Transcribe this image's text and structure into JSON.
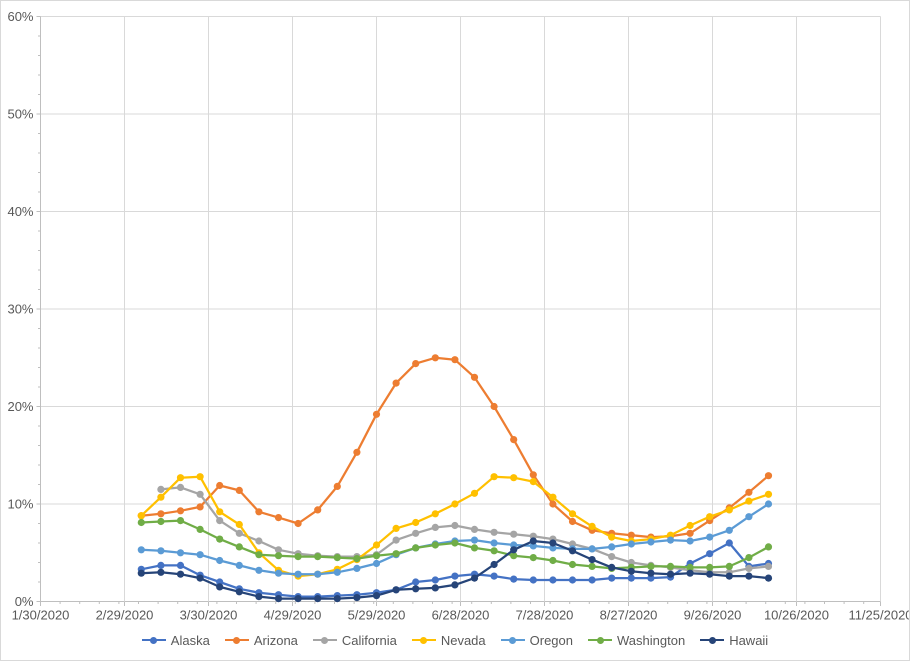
{
  "window": {
    "background": "#ffffff",
    "border_color": "#d9d9d9"
  },
  "chart_data": {
    "type": "line",
    "title": "",
    "xlabel": "",
    "ylabel": "",
    "grid": {
      "show": true,
      "gridline_color": "#d9d9d9",
      "axis_line_color": "#bfbfbf"
    },
    "text_color": "#595959",
    "legend_position": "bottom",
    "x_axis": {
      "tick_labels": [
        "1/30/2020",
        "2/29/2020",
        "3/30/2020",
        "4/29/2020",
        "5/29/2020",
        "6/28/2020",
        "7/28/2020",
        "8/27/2020",
        "9/26/2020",
        "10/26/2020",
        "11/25/2020"
      ],
      "minor_tick_unit_days": 7
    },
    "y_axis": {
      "min": 0,
      "max": 60,
      "major_step": 10,
      "minor_step": 2,
      "tick_labels": [
        "0%",
        "10%",
        "20%",
        "30%",
        "40%",
        "50%",
        "60%"
      ]
    },
    "categories": [
      "3/6/2020",
      "3/13/2020",
      "3/20/2020",
      "3/27/2020",
      "4/3/2020",
      "4/10/2020",
      "4/17/2020",
      "4/24/2020",
      "5/1/2020",
      "5/8/2020",
      "5/15/2020",
      "5/22/2020",
      "5/29/2020",
      "6/5/2020",
      "6/12/2020",
      "6/19/2020",
      "6/26/2020",
      "7/3/2020",
      "7/10/2020",
      "7/17/2020",
      "7/24/2020",
      "7/31/2020",
      "8/7/2020",
      "8/14/2020",
      "8/21/2020",
      "8/28/2020",
      "9/4/2020",
      "9/11/2020",
      "9/18/2020",
      "9/25/2020",
      "10/2/2020",
      "10/9/2020",
      "10/16/2020"
    ],
    "unit": "percent",
    "series": [
      {
        "name": "Alaska",
        "color": "#4472C4",
        "values": [
          3.3,
          3.7,
          3.7,
          2.7,
          2.0,
          1.3,
          0.9,
          0.7,
          0.5,
          0.5,
          0.6,
          0.7,
          0.9,
          1.2,
          2.0,
          2.2,
          2.6,
          2.8,
          2.6,
          2.3,
          2.2,
          2.2,
          2.2,
          2.2,
          2.4,
          2.4,
          2.4,
          2.5,
          3.9,
          4.9,
          6.0,
          3.6,
          3.9
        ]
      },
      {
        "name": "Arizona",
        "color": "#ED7D31",
        "values": [
          8.8,
          9.0,
          9.3,
          9.7,
          11.9,
          11.4,
          9.2,
          8.6,
          8.0,
          9.4,
          11.8,
          15.3,
          19.2,
          22.4,
          24.4,
          25.0,
          24.8,
          23.0,
          20.0,
          16.6,
          13.0,
          10.0,
          8.2,
          7.3,
          7.0,
          6.8,
          6.6,
          6.7,
          7.0,
          8.3,
          9.6,
          11.2,
          12.9
        ]
      },
      {
        "name": "California",
        "color": "#A5A5A5",
        "values": [
          null,
          11.5,
          11.7,
          11.0,
          8.3,
          7.0,
          6.2,
          5.3,
          4.9,
          4.7,
          4.6,
          4.6,
          4.8,
          6.3,
          7.0,
          7.6,
          7.8,
          7.4,
          7.1,
          6.9,
          6.7,
          6.4,
          5.9,
          5.4,
          4.6,
          4.0,
          3.7,
          3.5,
          3.2,
          3.0,
          3.0,
          3.4,
          3.6
        ]
      },
      {
        "name": "Nevada",
        "color": "#FFC000",
        "values": [
          8.8,
          10.7,
          12.7,
          12.8,
          9.2,
          7.9,
          5.0,
          3.2,
          2.6,
          2.8,
          3.3,
          4.3,
          5.8,
          7.5,
          8.1,
          9.0,
          10.0,
          11.1,
          12.8,
          12.7,
          12.3,
          10.7,
          9.0,
          7.7,
          6.6,
          6.2,
          6.4,
          6.8,
          7.8,
          8.7,
          9.4,
          10.3,
          11.0
        ]
      },
      {
        "name": "Oregon",
        "color": "#5B9BD5",
        "values": [
          5.3,
          5.2,
          5.0,
          4.8,
          4.2,
          3.7,
          3.2,
          2.9,
          2.8,
          2.8,
          3.0,
          3.4,
          3.9,
          4.8,
          5.5,
          5.9,
          6.2,
          6.3,
          6.0,
          5.8,
          5.7,
          5.5,
          5.4,
          5.4,
          5.6,
          5.9,
          6.1,
          6.3,
          6.2,
          6.6,
          7.3,
          8.7,
          10.0
        ]
      },
      {
        "name": "Washington",
        "color": "#70AD47",
        "values": [
          8.1,
          8.2,
          8.3,
          7.4,
          6.4,
          5.6,
          4.8,
          4.7,
          4.6,
          4.6,
          4.5,
          4.4,
          4.7,
          4.9,
          5.5,
          5.8,
          6.0,
          5.5,
          5.2,
          4.7,
          4.5,
          4.2,
          3.8,
          3.6,
          3.4,
          3.5,
          3.6,
          3.6,
          3.5,
          3.5,
          3.6,
          4.5,
          5.6
        ]
      },
      {
        "name": "Hawaii",
        "color": "#264478",
        "values": [
          2.9,
          3.0,
          2.8,
          2.4,
          1.5,
          1.0,
          0.5,
          0.3,
          0.3,
          0.3,
          0.3,
          0.4,
          0.6,
          1.2,
          1.3,
          1.4,
          1.7,
          2.4,
          3.8,
          5.3,
          6.2,
          6.0,
          5.2,
          4.3,
          3.5,
          3.1,
          2.9,
          2.8,
          2.9,
          2.8,
          2.6,
          2.6,
          2.4
        ]
      }
    ]
  }
}
